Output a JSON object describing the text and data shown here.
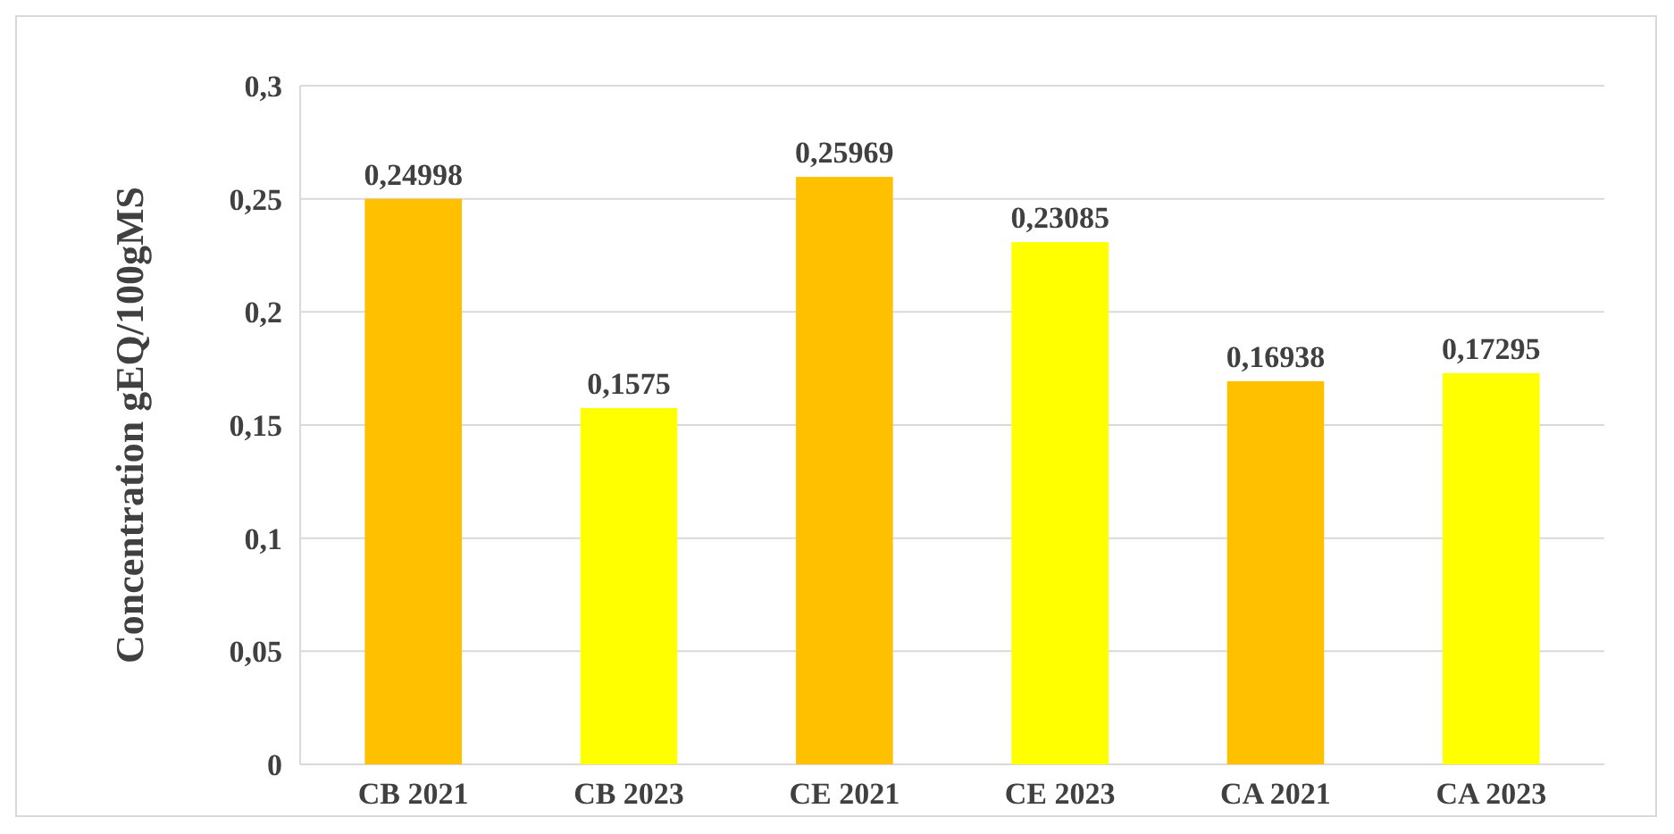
{
  "chart_data": {
    "type": "bar",
    "ylabel": "Concentration  gEQ/100gMS",
    "categories": [
      "CB 2021",
      "CB 2023",
      "CE 2021",
      "CE 2023",
      "CA 2021",
      "CA 2023"
    ],
    "values": [
      0.24998,
      0.1575,
      0.25969,
      0.23085,
      0.16938,
      0.17295
    ],
    "colors": [
      "#ffc000",
      "#ffff00",
      "#ffc000",
      "#ffff00",
      "#ffc000",
      "#ffff00"
    ],
    "value_labels": [
      "0,24998",
      "0,1575",
      "0,25969",
      "0,23085",
      "0,16938",
      "0,17295"
    ],
    "ylim": [
      0,
      0.3
    ],
    "yticks": [
      {
        "value": 0,
        "label": "0"
      },
      {
        "value": 0.05,
        "label": "0,05"
      },
      {
        "value": 0.1,
        "label": "0,1"
      },
      {
        "value": 0.15,
        "label": "0,15"
      },
      {
        "value": 0.2,
        "label": "0,2"
      },
      {
        "value": 0.25,
        "label": "0,25"
      },
      {
        "value": 0.3,
        "label": "0,3"
      }
    ],
    "grid": true
  }
}
